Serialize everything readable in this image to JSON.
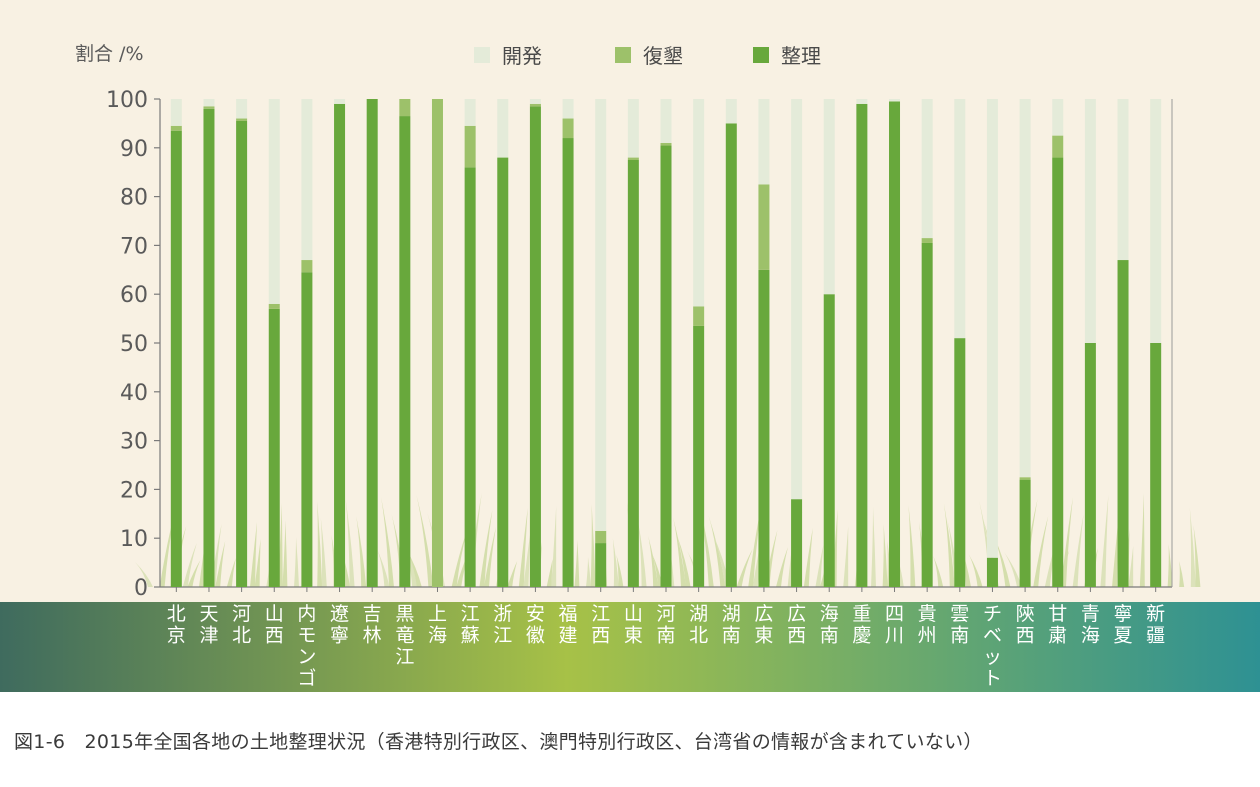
{
  "caption": "図1-6　2015年全国各地の土地整理状況（香港特別行政区、澳門特別行政区、台湾省の情報が含まれていない）",
  "colors": {
    "panel_bg": "#f8f1e3",
    "kaihatsu": "#e4ebd9",
    "fukkon": "#9dc16a",
    "seiri": "#68a83c",
    "band_left": "#3f6b5e",
    "band_mid": "#a7c147",
    "band_right": "#2e9193"
  },
  "chart_data": {
    "type": "bar",
    "stacked": true,
    "ylabel": "割合 /%",
    "ylim": [
      0,
      100
    ],
    "yticks": [
      0,
      10,
      20,
      30,
      40,
      50,
      60,
      70,
      80,
      90,
      100
    ],
    "legend_position": "top-center",
    "categories": [
      "北京",
      "天津",
      "河北",
      "山西",
      "内モンゴル",
      "遼寧",
      "吉林",
      "黒竜江",
      "上海",
      "江蘇",
      "浙江",
      "安徽",
      "福建",
      "江西",
      "山東",
      "河南",
      "湖北",
      "湖南",
      "広東",
      "広西",
      "海南",
      "重慶",
      "四川",
      "貴州",
      "雲南",
      "チベット",
      "陝西",
      "甘粛",
      "青海",
      "寧夏",
      "新疆"
    ],
    "series": [
      {
        "name": "整理",
        "color": "#68a83c",
        "values": [
          93.5,
          98,
          95.5,
          57,
          64.5,
          99,
          100,
          96.5,
          0,
          86,
          88,
          98.5,
          92,
          9,
          87.5,
          90.5,
          53.5,
          95,
          65,
          18,
          60,
          99,
          99.5,
          70.5,
          51,
          6,
          22,
          88,
          50,
          67,
          50
        ]
      },
      {
        "name": "復墾",
        "color": "#9dc16a",
        "values": [
          1,
          0.5,
          0.5,
          1,
          2.5,
          0,
          0,
          3.5,
          100,
          8.5,
          0,
          0.5,
          4,
          2.5,
          0.5,
          0.5,
          4,
          0,
          17.5,
          0,
          0,
          0,
          0,
          1,
          0,
          0,
          0.5,
          4.5,
          0,
          0,
          0
        ]
      },
      {
        "name": "開発",
        "color": "#e4ebd9",
        "values": [
          5.5,
          1.5,
          4,
          42,
          33,
          1,
          0,
          0,
          0,
          5.5,
          12,
          1,
          4,
          88.5,
          12,
          9,
          42.5,
          5,
          17.5,
          82,
          40,
          1,
          0.5,
          28.5,
          49,
          94,
          77.5,
          7.5,
          50,
          33,
          50
        ]
      }
    ]
  }
}
